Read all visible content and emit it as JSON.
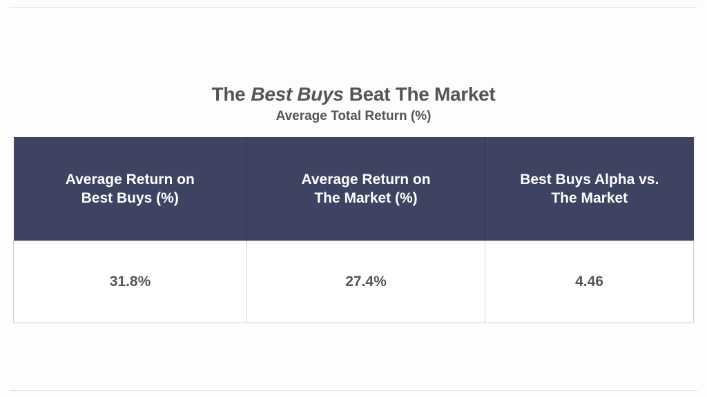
{
  "title": {
    "parts": [
      "The",
      "Best Buys",
      "Beat The Market"
    ]
  },
  "subtitle": "Average Total Return (%)",
  "table": {
    "header": [
      [
        "Average Return on",
        "Best Buys (%)"
      ],
      [
        "Average Return on",
        "The Market (%)"
      ],
      [
        "Best Buys Alpha vs.",
        "The Market"
      ]
    ],
    "rows": [
      [
        "31.8%",
        "27.4%",
        "4.46"
      ]
    ]
  }
}
